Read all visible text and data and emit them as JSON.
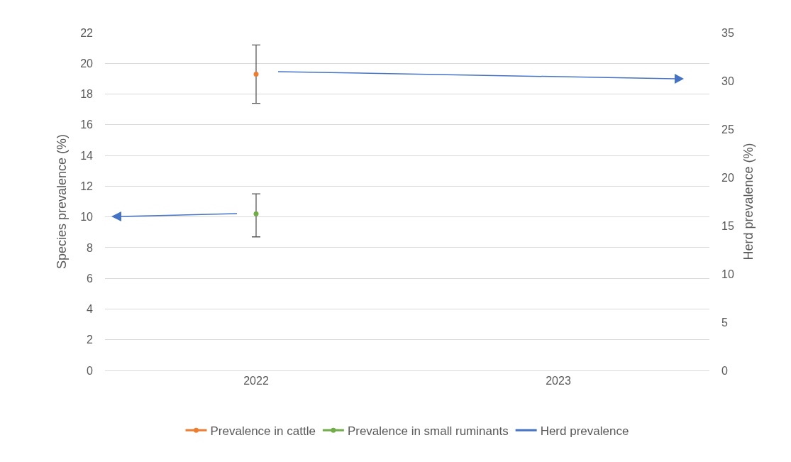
{
  "chart_data": {
    "type": "line",
    "categories": [
      "2022",
      "2023"
    ],
    "series": [
      {
        "name": "Prevalence in cattle",
        "color": "#ed7d31",
        "values": [
          19.3,
          null
        ],
        "errors": [
          [
            17.4,
            21.2
          ],
          null
        ]
      },
      {
        "name": "Prevalence in small ruminants",
        "color": "#70ad47",
        "values": [
          10.2,
          null
        ],
        "errors": [
          [
            8.7,
            11.5
          ],
          null
        ]
      },
      {
        "name": "Herd prevalence",
        "color": "#4472c4",
        "axis": "y2",
        "values": [
          null,
          null
        ]
      }
    ],
    "ylabel": "Species prevalence (%)",
    "y2label": "Herd prevalence (%)",
    "ylim": [
      0,
      22
    ],
    "yticks": [
      0,
      2,
      4,
      6,
      8,
      10,
      12,
      14,
      16,
      18,
      20,
      22
    ],
    "y2lim": [
      0,
      35
    ],
    "y2ticks": [
      0,
      5,
      10,
      15,
      20,
      25,
      30,
      35
    ],
    "grid": "y",
    "legend": "bottom",
    "marker": "none",
    "line_style": "solid"
  }
}
